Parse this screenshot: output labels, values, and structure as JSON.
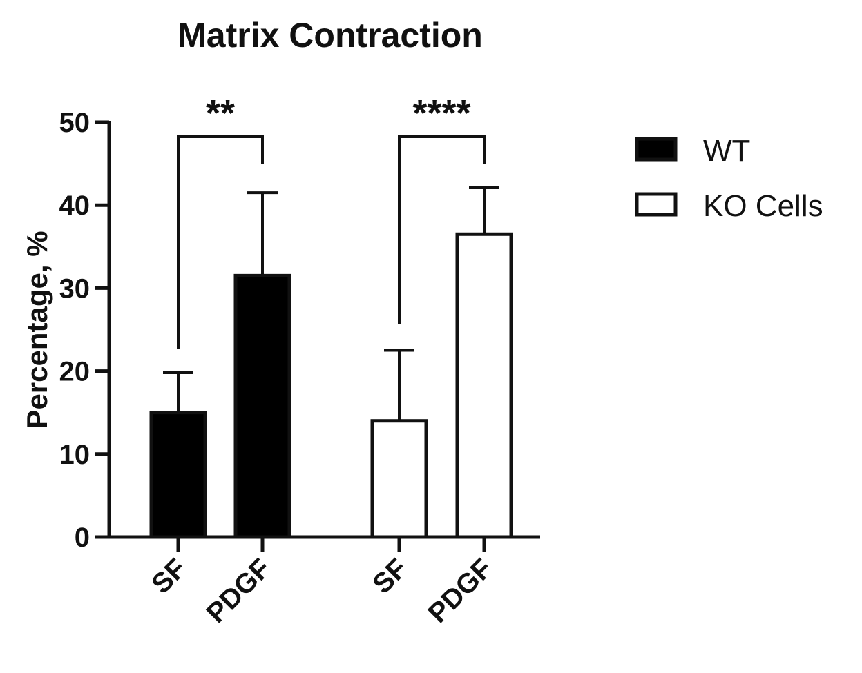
{
  "chart_data": {
    "type": "bar",
    "title": "Matrix Contraction",
    "ylabel": "Percentage, %",
    "xlabel": "",
    "ylim": [
      0,
      50
    ],
    "yticks": [
      0,
      10,
      20,
      30,
      40,
      50
    ],
    "categories": [
      "SF",
      "PDGF"
    ],
    "series": [
      {
        "name": "WT",
        "values": [
          15,
          31.5
        ],
        "errors": [
          4.8,
          10
        ],
        "fill": "#000000",
        "significance": "**"
      },
      {
        "name": "KO Cells",
        "values": [
          14,
          36.5
        ],
        "errors": [
          8.5,
          5.6
        ],
        "fill": "#ffffff",
        "significance": "****"
      }
    ],
    "legend_position": "right",
    "grid": false
  },
  "colors": {
    "ink": "#111111",
    "wt_fill": "#000000",
    "ko_fill": "#ffffff"
  }
}
